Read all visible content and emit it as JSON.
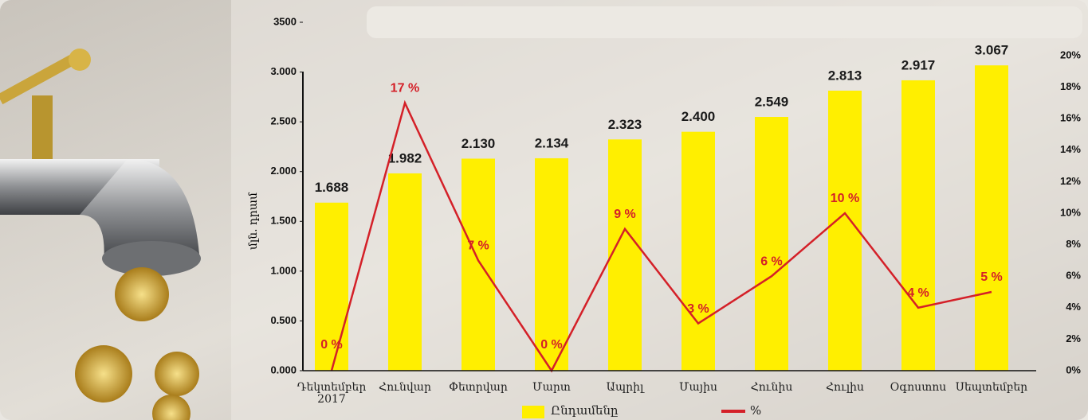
{
  "chart_data": {
    "type": "bar",
    "y_label": "մլն. դրամ",
    "categories": [
      "Դեկտեմբեր 2017",
      "Հունվար",
      "Փետրվար",
      "Մարտ",
      "Ապրիլ",
      "Մայիս",
      "Հունիս",
      "Հուլիս",
      "Օգոստոս",
      "Սեպտեմբեր"
    ],
    "series": [
      {
        "name": "Ընդամենը",
        "type": "bar",
        "color": "#ffef00",
        "values": [
          1688,
          1982,
          2130,
          2134,
          2323,
          2400,
          2549,
          2813,
          2917,
          3067
        ],
        "value_labels": [
          "1.688",
          "1.982",
          "2.130",
          "2.134",
          "2.323",
          "2.400",
          "2.549",
          "2.813",
          "2.917",
          "3.067"
        ]
      },
      {
        "name": "%",
        "type": "line",
        "axis": "y2",
        "color": "#d42028",
        "values": [
          0,
          17,
          7,
          0,
          9,
          3,
          6,
          10,
          4,
          5
        ],
        "value_labels": [
          "0 %",
          "17 %",
          "7 %",
          "0 %",
          "9 %",
          "3 %",
          "6 %",
          "10 %",
          "4 %",
          "5 %"
        ]
      }
    ],
    "ylim": [
      0,
      3500
    ],
    "yticks": [
      {
        "value": 0,
        "label": "0.000"
      },
      {
        "value": 500,
        "label": "0.500"
      },
      {
        "value": 1000,
        "label": "1.000"
      },
      {
        "value": 1500,
        "label": "1.500"
      },
      {
        "value": 2000,
        "label": "2.000"
      },
      {
        "value": 2500,
        "label": "2.500"
      },
      {
        "value": 3000,
        "label": "3.000"
      },
      3500
    ],
    "y2lim": [
      0,
      20
    ],
    "y2ticks": [
      {
        "value": 0,
        "label": "0%"
      },
      {
        "value": 2,
        "label": "2%"
      },
      {
        "value": 4,
        "label": "4%"
      },
      {
        "value": 6,
        "label": "6%"
      },
      {
        "value": 8,
        "label": "8%"
      },
      {
        "value": 10,
        "label": "10%"
      },
      {
        "value": 12,
        "label": "12%"
      },
      {
        "value": 14,
        "label": "14%"
      },
      {
        "value": 16,
        "label": "16%"
      },
      {
        "value": 18,
        "label": "18%"
      },
      {
        "value": 20,
        "label": "20%"
      }
    ]
  }
}
